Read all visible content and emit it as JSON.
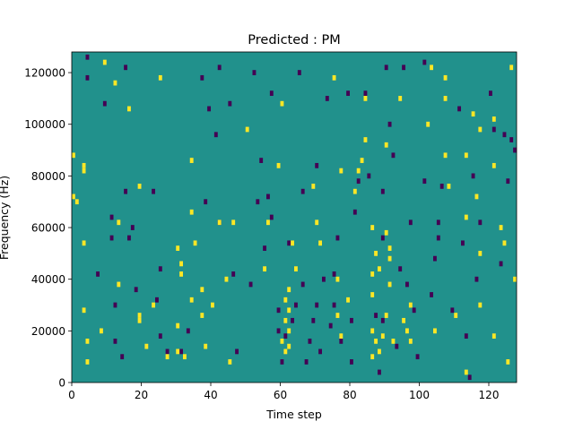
{
  "chart_data": {
    "type": "heatmap",
    "title": "Predicted : PM",
    "xlabel": "Time step",
    "ylabel": "Frequency (Hz)",
    "xlim": [
      0,
      128
    ],
    "ylim": [
      0,
      128000
    ],
    "x_ticks": [
      0,
      20,
      40,
      60,
      80,
      100,
      120
    ],
    "y_ticks": [
      0,
      20000,
      40000,
      60000,
      80000,
      100000,
      120000
    ],
    "x_tick_labels": [
      "0",
      "20",
      "40",
      "60",
      "80",
      "100",
      "120"
    ],
    "y_tick_labels": [
      "0",
      "20000",
      "40000",
      "60000",
      "80000",
      "100000",
      "120000"
    ],
    "grid": false,
    "colorbar": false,
    "value_levels": [
      -1,
      0,
      1
    ],
    "background_value": 0,
    "colors": {
      "-1": "#440154",
      "0": "#21918c",
      "1": "#fde725"
    },
    "yellow_cells": [
      [
        1,
        72000
      ],
      [
        2,
        70000
      ],
      [
        1,
        88000
      ],
      [
        4,
        84000
      ],
      [
        4,
        82000
      ],
      [
        4,
        54000
      ],
      [
        4,
        28000
      ],
      [
        5,
        16000
      ],
      [
        5,
        8000
      ],
      [
        9,
        20000
      ],
      [
        10,
        124000
      ],
      [
        13,
        116000
      ],
      [
        14,
        62000
      ],
      [
        14,
        38000
      ],
      [
        17,
        106000
      ],
      [
        20,
        26000
      ],
      [
        20,
        24000
      ],
      [
        20,
        76000
      ],
      [
        22,
        14000
      ],
      [
        24,
        30000
      ],
      [
        26,
        118000
      ],
      [
        28,
        10000
      ],
      [
        31,
        52000
      ],
      [
        31,
        22000
      ],
      [
        31,
        12000
      ],
      [
        32,
        46000
      ],
      [
        32,
        42000
      ],
      [
        33,
        10000
      ],
      [
        35,
        32000
      ],
      [
        35,
        66000
      ],
      [
        35,
        86000
      ],
      [
        36,
        54000
      ],
      [
        38,
        36000
      ],
      [
        38,
        26000
      ],
      [
        39,
        14000
      ],
      [
        41,
        30000
      ],
      [
        43,
        62000
      ],
      [
        45,
        40000
      ],
      [
        47,
        62000
      ],
      [
        46,
        8000
      ],
      [
        51,
        98000
      ],
      [
        56,
        44000
      ],
      [
        57,
        62000
      ],
      [
        60,
        84000
      ],
      [
        61,
        16000
      ],
      [
        62,
        12000
      ],
      [
        61,
        108000
      ],
      [
        62,
        24000
      ],
      [
        62,
        32000
      ],
      [
        63,
        36000
      ],
      [
        63,
        28000
      ],
      [
        63,
        20000
      ],
      [
        63,
        14000
      ],
      [
        64,
        54000
      ],
      [
        65,
        44000
      ],
      [
        70,
        76000
      ],
      [
        71,
        62000
      ],
      [
        72,
        54000
      ],
      [
        76,
        118000
      ],
      [
        77,
        40000
      ],
      [
        77,
        26000
      ],
      [
        78,
        18000
      ],
      [
        78,
        82000
      ],
      [
        80,
        32000
      ],
      [
        82,
        74000
      ],
      [
        83,
        82000
      ],
      [
        84,
        86000
      ],
      [
        85,
        94000
      ],
      [
        85,
        110000
      ],
      [
        87,
        60000
      ],
      [
        87,
        42000
      ],
      [
        87,
        34000
      ],
      [
        87,
        20000
      ],
      [
        87,
        10000
      ],
      [
        88,
        50000
      ],
      [
        88,
        16000
      ],
      [
        89,
        12000
      ],
      [
        89,
        44000
      ],
      [
        90,
        18000
      ],
      [
        91,
        92000
      ],
      [
        91,
        26000
      ],
      [
        91,
        58000
      ],
      [
        92,
        52000
      ],
      [
        92,
        48000
      ],
      [
        92,
        38000
      ],
      [
        93,
        16000
      ],
      [
        95,
        110000
      ],
      [
        96,
        24000
      ],
      [
        97,
        20000
      ],
      [
        98,
        30000
      ],
      [
        98,
        16000
      ],
      [
        103,
        100000
      ],
      [
        104,
        122000
      ],
      [
        105,
        20000
      ],
      [
        108,
        118000
      ],
      [
        108,
        110000
      ],
      [
        108,
        88000
      ],
      [
        109,
        76000
      ],
      [
        111,
        26000
      ],
      [
        114,
        4000
      ],
      [
        114,
        64000
      ],
      [
        114,
        88000
      ],
      [
        116,
        104000
      ],
      [
        117,
        72000
      ],
      [
        118,
        30000
      ],
      [
        118,
        50000
      ],
      [
        118,
        98000
      ],
      [
        122,
        18000
      ],
      [
        122,
        84000
      ],
      [
        122,
        102000
      ],
      [
        124,
        60000
      ],
      [
        125,
        54000
      ],
      [
        126,
        8000
      ],
      [
        127,
        122000
      ],
      [
        128,
        40000
      ]
    ],
    "purple_cells": [
      [
        5,
        126000
      ],
      [
        5,
        118000
      ],
      [
        8,
        42000
      ],
      [
        10,
        108000
      ],
      [
        12,
        64000
      ],
      [
        12,
        56000
      ],
      [
        13,
        30000
      ],
      [
        13,
        16000
      ],
      [
        15,
        10000
      ],
      [
        16,
        122000
      ],
      [
        16,
        74000
      ],
      [
        17,
        56000
      ],
      [
        18,
        60000
      ],
      [
        19,
        36000
      ],
      [
        24,
        74000
      ],
      [
        25,
        32000
      ],
      [
        26,
        18000
      ],
      [
        26,
        44000
      ],
      [
        28,
        12000
      ],
      [
        32,
        12000
      ],
      [
        34,
        20000
      ],
      [
        38,
        118000
      ],
      [
        39,
        70000
      ],
      [
        40,
        106000
      ],
      [
        42,
        96000
      ],
      [
        43,
        122000
      ],
      [
        43,
        62000
      ],
      [
        46,
        108000
      ],
      [
        47,
        42000
      ],
      [
        48,
        12000
      ],
      [
        52,
        38000
      ],
      [
        53,
        120000
      ],
      [
        54,
        70000
      ],
      [
        55,
        86000
      ],
      [
        56,
        52000
      ],
      [
        57,
        72000
      ],
      [
        58,
        112000
      ],
      [
        58,
        64000
      ],
      [
        60,
        28000
      ],
      [
        60,
        20000
      ],
      [
        61,
        8000
      ],
      [
        62,
        18000
      ],
      [
        63,
        54000
      ],
      [
        64,
        24000
      ],
      [
        65,
        30000
      ],
      [
        66,
        120000
      ],
      [
        67,
        38000
      ],
      [
        67,
        74000
      ],
      [
        68,
        8000
      ],
      [
        69,
        16000
      ],
      [
        70,
        24000
      ],
      [
        71,
        84000
      ],
      [
        71,
        30000
      ],
      [
        72,
        12000
      ],
      [
        73,
        40000
      ],
      [
        74,
        110000
      ],
      [
        75,
        22000
      ],
      [
        76,
        42000
      ],
      [
        76,
        30000
      ],
      [
        77,
        56000
      ],
      [
        78,
        16000
      ],
      [
        80,
        112000
      ],
      [
        81,
        24000
      ],
      [
        81,
        8000
      ],
      [
        82,
        66000
      ],
      [
        83,
        78000
      ],
      [
        85,
        112000
      ],
      [
        86,
        80000
      ],
      [
        88,
        26000
      ],
      [
        89,
        4000
      ],
      [
        90,
        74000
      ],
      [
        90,
        56000
      ],
      [
        90,
        24000
      ],
      [
        91,
        122000
      ],
      [
        92,
        100000
      ],
      [
        93,
        88000
      ],
      [
        94,
        14000
      ],
      [
        95,
        44000
      ],
      [
        96,
        122000
      ],
      [
        97,
        38000
      ],
      [
        98,
        62000
      ],
      [
        99,
        28000
      ],
      [
        100,
        10000
      ],
      [
        102,
        124000
      ],
      [
        102,
        78000
      ],
      [
        104,
        34000
      ],
      [
        105,
        48000
      ],
      [
        106,
        62000
      ],
      [
        106,
        56000
      ],
      [
        107,
        76000
      ],
      [
        110,
        28000
      ],
      [
        112,
        106000
      ],
      [
        113,
        54000
      ],
      [
        114,
        18000
      ],
      [
        115,
        2000
      ],
      [
        116,
        80000
      ],
      [
        117,
        40000
      ],
      [
        118,
        62000
      ],
      [
        121,
        112000
      ],
      [
        122,
        98000
      ],
      [
        124,
        46000
      ],
      [
        125,
        96000
      ],
      [
        126,
        78000
      ],
      [
        127,
        94000
      ],
      [
        128,
        90000
      ]
    ]
  }
}
